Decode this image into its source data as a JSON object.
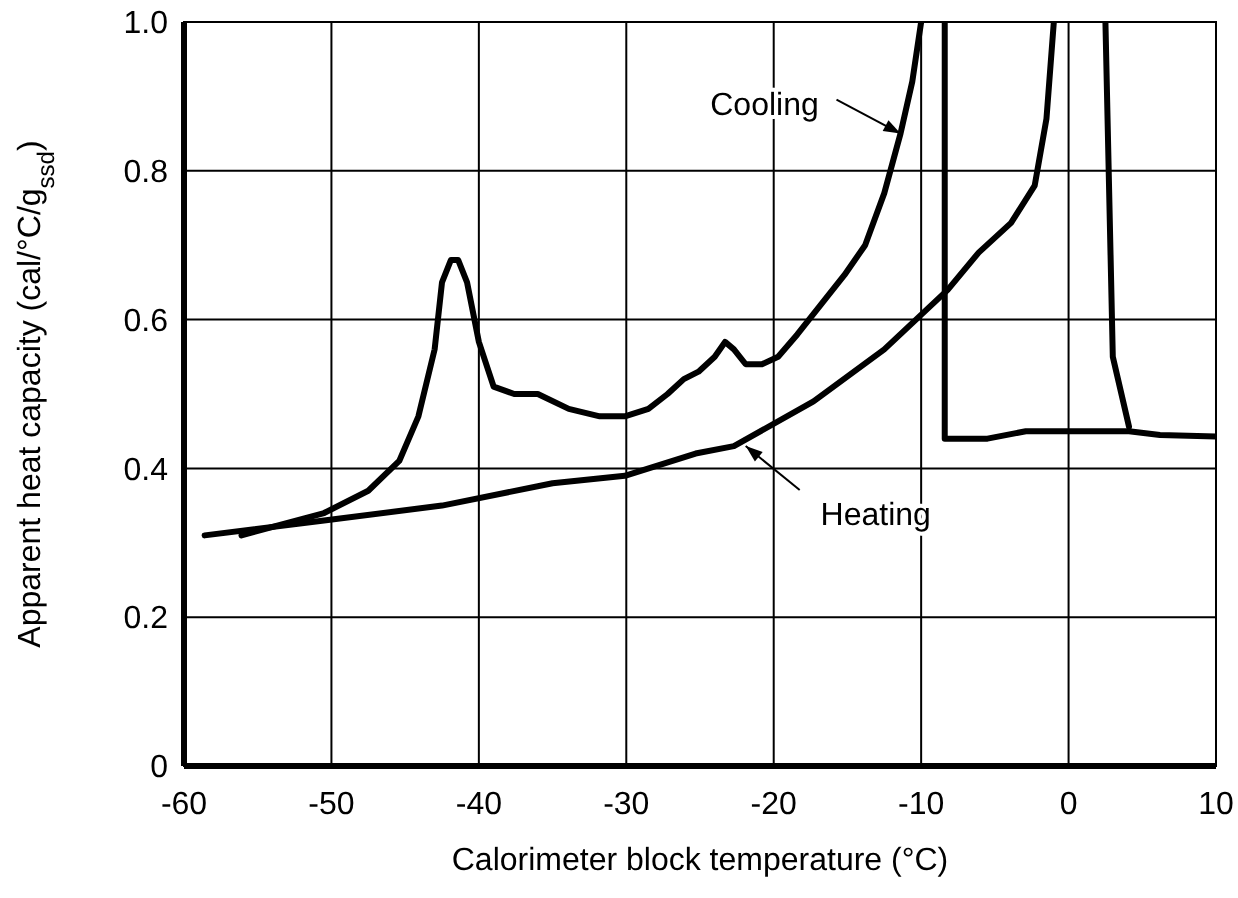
{
  "chart_data": {
    "type": "line",
    "xlabel": "Calorimeter block temperature (°C)",
    "ylabel": "Apparent heat capacity (cal/°C/g$_{ssd}$)",
    "xlim": [
      -60,
      10
    ],
    "ylim": [
      0,
      1
    ],
    "xticks": [
      -60,
      -50,
      -40,
      -30,
      -20,
      -10,
      0,
      10
    ],
    "yticks": [
      0,
      {
        "value": 0.2,
        "label": "0.2"
      },
      {
        "value": 0.4,
        "label": "0.4"
      },
      {
        "value": 0.6,
        "label": "0.6"
      },
      {
        "value": 0.8,
        "label": "0.8"
      },
      {
        "value": 1,
        "label": "1.0"
      }
    ],
    "grid": true,
    "marker": "none",
    "line_style": "solid",
    "series": [
      {
        "color": "#000000",
        "x": [
          -56.1,
          -50.5,
          -47.5,
          -45.4,
          -44.1,
          -43.0,
          -42.5,
          -41.9,
          -41.4,
          -40.8,
          -40.0,
          -39.0,
          -37.6,
          -36.0,
          -33.9,
          -31.8,
          -30.1,
          -28.5,
          -27.2,
          -26.1,
          -25.1,
          -24.0,
          -23.3,
          -22.7,
          -21.9,
          -20.8,
          -19.7,
          -18.4,
          -16.8,
          -15.2,
          -13.8,
          -12.5,
          -11.4,
          -10.6,
          -10.0
        ],
        "values": [
          0.31,
          0.34,
          0.37,
          0.41,
          0.47,
          0.56,
          0.65,
          0.68,
          0.68,
          0.65,
          0.57,
          0.51,
          0.5,
          0.5,
          0.48,
          0.47,
          0.47,
          0.48,
          0.5,
          0.52,
          0.53,
          0.55,
          0.57,
          0.56,
          0.54,
          0.54,
          0.55,
          0.58,
          0.62,
          0.66,
          0.7,
          0.77,
          0.85,
          0.92,
          1.0
        ]
      },
      {
        "color": "#000000",
        "x": [
          -8.4,
          -8.4,
          -5.5,
          -2.9,
          -0.2,
          2.5,
          4.1,
          6.2,
          10
        ],
        "values": [
          1.0,
          0.44,
          0.44,
          0.45,
          0.45,
          0.45,
          0.45,
          0.445,
          0.443
        ]
      },
      {
        "color": "#000000",
        "x": [
          -58.6,
          -50.5,
          -42.5,
          -35.0,
          -30.1,
          -25.3,
          -22.7,
          -17.3,
          -12.5,
          -8.2,
          -6.1,
          -3.9,
          -2.3,
          -1.5,
          -1.0
        ],
        "values": [
          0.31,
          0.33,
          0.35,
          0.38,
          0.39,
          0.42,
          0.43,
          0.49,
          0.56,
          0.64,
          0.69,
          0.73,
          0.78,
          0.87,
          1.0
        ]
      },
      {
        "color": "#000000",
        "x": [
          2.5,
          3.0,
          4.1
        ],
        "values": [
          1.0,
          0.55,
          0.456
        ]
      }
    ],
    "annotations": [
      {
        "text": "Cooling",
        "x": -11.4,
        "y": 0.85
      },
      {
        "text": "Heating",
        "x": -21.9,
        "y": 0.43
      }
    ]
  }
}
